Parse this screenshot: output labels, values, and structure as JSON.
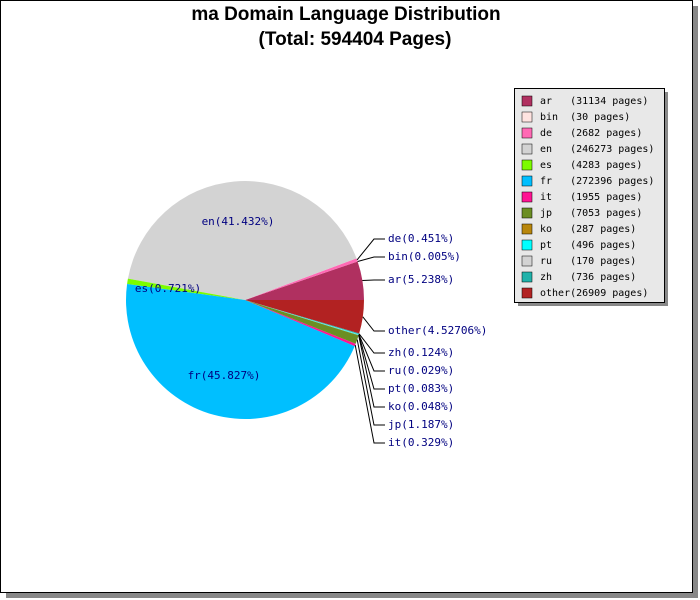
{
  "chart_data": {
    "type": "pie",
    "title": "ma Domain Language Distribution",
    "subtitle": "(Total: 594404 Pages)",
    "categories": [
      "ar",
      "bin",
      "de",
      "en",
      "es",
      "fr",
      "it",
      "jp",
      "ko",
      "pt",
      "ru",
      "zh",
      "other"
    ],
    "values": [
      5.238,
      0.005,
      0.451,
      41.432,
      0.721,
      45.827,
      0.329,
      1.187,
      0.048,
      0.083,
      0.029,
      0.124,
      4.52706
    ],
    "value_labels": [
      "ar(5.238%)",
      "bin(0.005%)",
      "de(0.451%)",
      "en(41.432%)",
      "es(0.721%)",
      "fr(45.827%)",
      "it(0.329%)",
      "jp(1.187%)",
      "ko(0.048%)",
      "pt(0.083%)",
      "ru(0.029%)",
      "zh(0.124%)",
      "other(4.52706%)"
    ],
    "legend_labels": [
      "ar   (31134 pages)",
      "bin  (30 pages)",
      "de   (2682 pages)",
      "en   (246273 pages)",
      "es   (4283 pages)",
      "fr   (272396 pages)",
      "it   (1955 pages)",
      "jp   (7053 pages)",
      "ko   (287 pages)",
      "pt   (496 pages)",
      "ru   (170 pages)",
      "zh   (736 pages)",
      "other(26909 pages)"
    ],
    "colors": [
      "#b03060",
      "#ffe4e1",
      "#ff69b4",
      "#d3d3d3",
      "#7cfc00",
      "#00bfff",
      "#ff1493",
      "#6b8e23",
      "#b8860b",
      "#00ffff",
      "#d3d3d3",
      "#20b2aa",
      "#b22222"
    ],
    "legend_position": "upper right"
  }
}
